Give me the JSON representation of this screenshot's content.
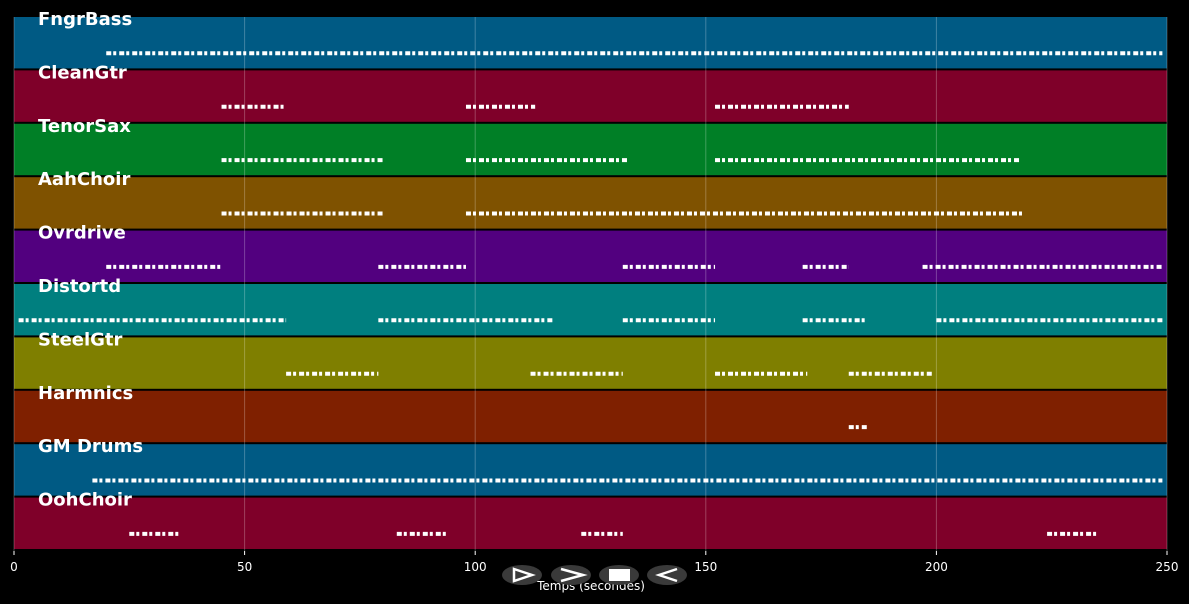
{
  "chart_data": {
    "type": "track-roll",
    "xlabel": "Temps (secondes)",
    "xlim": [
      0,
      250
    ],
    "xticks": [
      0,
      50,
      100,
      150,
      200,
      250
    ],
    "grid": true,
    "series": [
      {
        "name": "FngrBass",
        "color": "#005a84",
        "segments": [
          [
            20,
            249
          ]
        ]
      },
      {
        "name": "CleanGtr",
        "color": "#7f0029",
        "segments": [
          [
            45,
            59
          ],
          [
            98,
            113
          ],
          [
            152,
            181
          ]
        ]
      },
      {
        "name": "TenorSax",
        "color": "#007f26",
        "segments": [
          [
            45,
            80
          ],
          [
            98,
            133
          ],
          [
            152,
            218
          ]
        ]
      },
      {
        "name": "AahChoir",
        "color": "#7f5200",
        "segments": [
          [
            45,
            80
          ],
          [
            98,
            219
          ]
        ]
      },
      {
        "name": "Ovrdrive",
        "color": "#52007f",
        "segments": [
          [
            20,
            45
          ],
          [
            79,
            98
          ],
          [
            132,
            152
          ],
          [
            171,
            181
          ],
          [
            197,
            249
          ]
        ]
      },
      {
        "name": "Distortd",
        "color": "#007f7f",
        "segments": [
          [
            1,
            59
          ],
          [
            79,
            117
          ],
          [
            132,
            152
          ],
          [
            171,
            185
          ],
          [
            200,
            249
          ]
        ]
      },
      {
        "name": "SteelGtr",
        "color": "#7f7f00",
        "segments": [
          [
            59,
            79
          ],
          [
            112,
            132
          ],
          [
            152,
            172
          ],
          [
            181,
            199
          ]
        ]
      },
      {
        "name": "Harmnics",
        "color": "#7f2000",
        "segments": [
          [
            181,
            185
          ]
        ]
      },
      {
        "name": "GM Drums",
        "color": "#005a84",
        "segments": [
          [
            17,
            249
          ]
        ]
      },
      {
        "name": "OohChoir",
        "color": "#7f0029",
        "segments": [
          [
            25,
            36
          ],
          [
            83,
            94
          ],
          [
            123,
            132
          ],
          [
            224,
            235
          ]
        ]
      }
    ]
  }
}
